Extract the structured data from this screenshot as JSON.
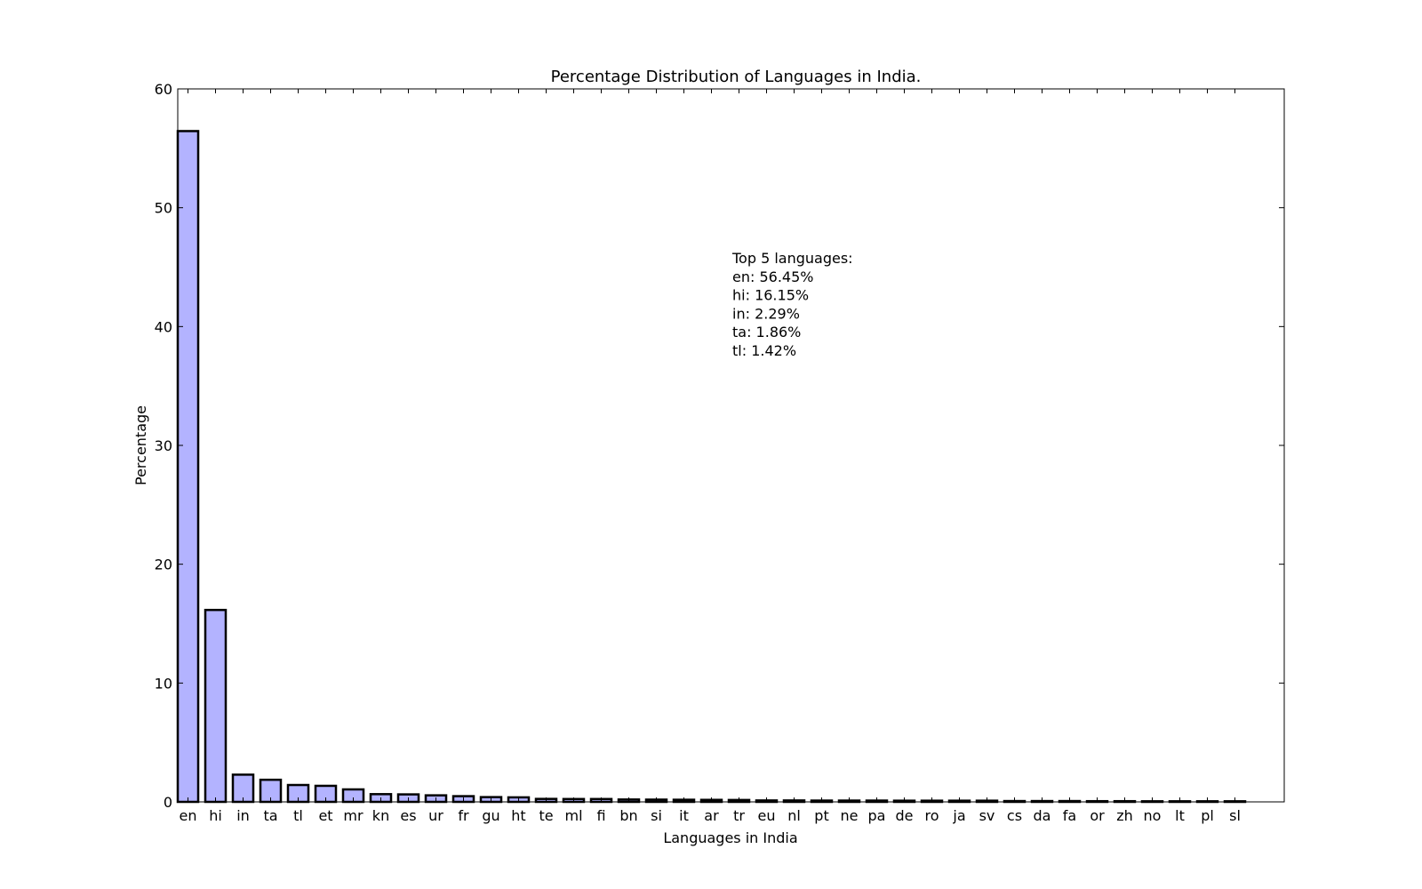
{
  "chart_data": {
    "type": "bar",
    "title": "Percentage Distribution of Languages in India.",
    "xlabel": "Languages in India",
    "ylabel": "Percentage",
    "ylim": [
      0,
      60
    ],
    "yticks": [
      "0",
      "10",
      "20",
      "30",
      "40",
      "50",
      "60"
    ],
    "categories": [
      "en",
      "hi",
      "in",
      "ta",
      "tl",
      "et",
      "mr",
      "kn",
      "es",
      "ur",
      "fr",
      "gu",
      "ht",
      "te",
      "ml",
      "fi",
      "bn",
      "si",
      "it",
      "ar",
      "tr",
      "eu",
      "nl",
      "pt",
      "ne",
      "pa",
      "de",
      "ro",
      "ja",
      "sv",
      "cs",
      "da",
      "fa",
      "or",
      "zh",
      "no",
      "lt",
      "pl",
      "sl"
    ],
    "values": [
      56.45,
      16.15,
      2.29,
      1.86,
      1.42,
      1.35,
      1.05,
      0.65,
      0.63,
      0.55,
      0.48,
      0.4,
      0.38,
      0.25,
      0.24,
      0.24,
      0.2,
      0.19,
      0.18,
      0.17,
      0.16,
      0.12,
      0.12,
      0.11,
      0.11,
      0.11,
      0.1,
      0.1,
      0.1,
      0.1,
      0.07,
      0.07,
      0.07,
      0.06,
      0.06,
      0.05,
      0.05,
      0.05,
      0.05
    ],
    "bar_color": "#b3b3ff",
    "bar_edge_color": "#000000",
    "grid": false,
    "annotation": {
      "lines": [
        "Top 5 languages:",
        "en: 56.45%",
        "hi: 16.15%",
        "in: 2.29%",
        "ta: 1.86%",
        "tl: 1.42%"
      ]
    }
  }
}
